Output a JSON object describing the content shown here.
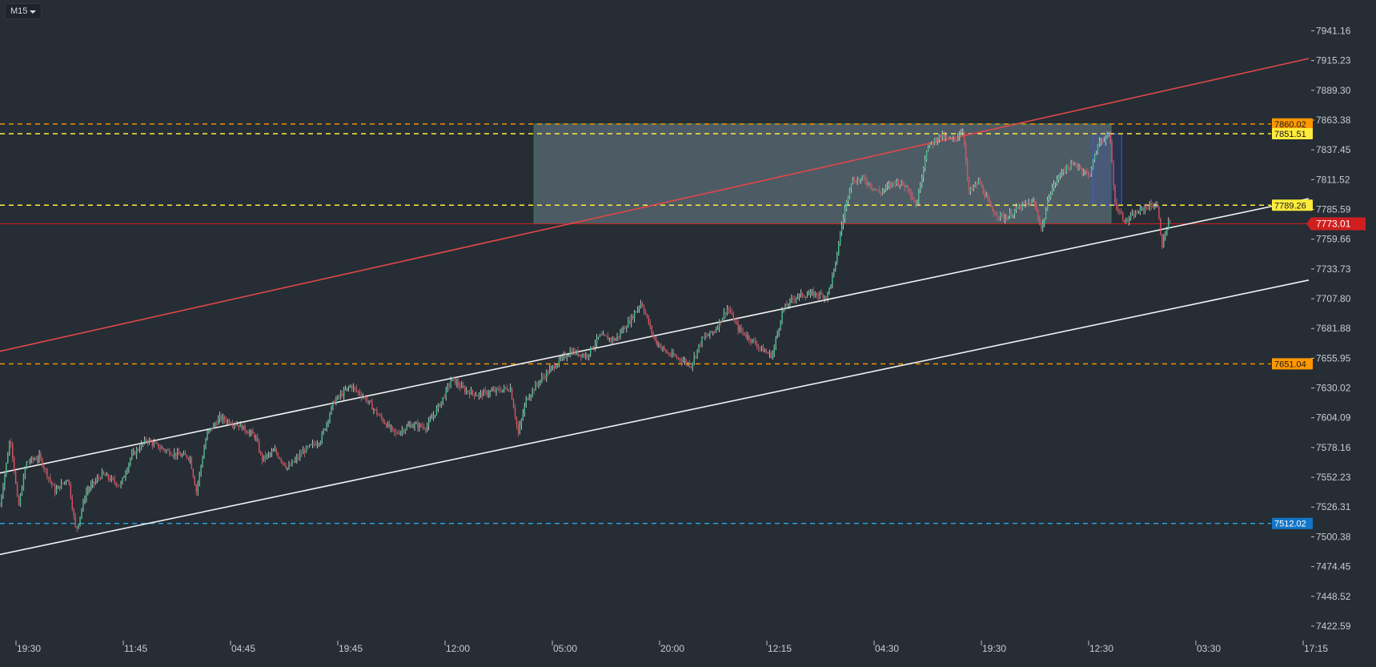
{
  "timeframe": {
    "label": "M15"
  },
  "chart_data": {
    "type": "candlestick",
    "ylim": [
      7410,
      7968
    ],
    "y_ticks": [
      "7941.16",
      "7915.23",
      "7889.30",
      "7863.38",
      "7837.45",
      "7811.52",
      "7785.59",
      "7759.66",
      "7733.73",
      "7707.80",
      "7681.88",
      "7655.95",
      "7630.02",
      "7604.09",
      "7578.16",
      "7552.23",
      "7526.31",
      "7500.38",
      "7474.45",
      "7448.52",
      "7422.59"
    ],
    "x_ticks": [
      "19:30",
      "11:45",
      "04:45",
      "19:45",
      "12:00",
      "05:00",
      "20:00",
      "12:15",
      "04:30",
      "19:30",
      "12:30",
      "03:30",
      "17:15"
    ],
    "current_price": {
      "value": 7773.01,
      "label": "7773.01",
      "color": "#d01f1f"
    },
    "horizontal_levels": [
      {
        "value": 7860.02,
        "label": "7860.02",
        "color": "#ff9800",
        "label_bg": "#ff9800",
        "label_fg": "#1a1a1a"
      },
      {
        "value": 7851.51,
        "label": "7851.51",
        "color": "#ffeb3b",
        "label_bg": "#ffeb3b",
        "label_fg": "#1a1a1a"
      },
      {
        "value": 7789.26,
        "label": "7789.26",
        "color": "#ffeb3b",
        "label_bg": "#ffeb3b",
        "label_fg": "#1a1a1a"
      },
      {
        "value": 7651.04,
        "label": "7651.04",
        "color": "#ff9800",
        "label_bg": "#ff9800",
        "label_fg": "#1a1a1a"
      },
      {
        "value": 7512.02,
        "label": "7512.02",
        "color": "#29a8e6",
        "label_bg": "#1476c8",
        "label_fg": "#ffffff"
      }
    ],
    "trendlines": [
      {
        "color": "#e04848",
        "start": [
          0,
          7662
        ],
        "end": [
          1.0,
          7917
        ]
      },
      {
        "color": "#f2f2f2",
        "start": [
          0,
          7556
        ],
        "end": [
          1.0,
          7795
        ]
      },
      {
        "color": "#f2f2f2",
        "start": [
          0,
          7485
        ],
        "end": [
          1.0,
          7724
        ]
      }
    ],
    "rectangles": [
      {
        "color": "#5b6b75",
        "border": "#2e7d4f",
        "x0": 0.408,
        "x1": 0.849,
        "y0": 7773.01,
        "y1": 7860.02
      },
      {
        "color": "#3a5ad8",
        "border": "#3a5ad8",
        "x0": 0.835,
        "x1": 0.857,
        "y0": 7789.26,
        "y1": 7851.51
      }
    ],
    "price_path": [
      [
        0.0,
        7528
      ],
      [
        0.008,
        7588
      ],
      [
        0.014,
        7525
      ],
      [
        0.02,
        7565
      ],
      [
        0.03,
        7570
      ],
      [
        0.042,
        7540
      ],
      [
        0.052,
        7552
      ],
      [
        0.058,
        7505
      ],
      [
        0.066,
        7540
      ],
      [
        0.078,
        7555
      ],
      [
        0.092,
        7545
      ],
      [
        0.1,
        7570
      ],
      [
        0.112,
        7585
      ],
      [
        0.122,
        7578
      ],
      [
        0.135,
        7572
      ],
      [
        0.145,
        7570
      ],
      [
        0.15,
        7540
      ],
      [
        0.158,
        7590
      ],
      [
        0.168,
        7604
      ],
      [
        0.182,
        7598
      ],
      [
        0.195,
        7588
      ],
      [
        0.2,
        7568
      ],
      [
        0.21,
        7575
      ],
      [
        0.22,
        7560
      ],
      [
        0.232,
        7575
      ],
      [
        0.245,
        7585
      ],
      [
        0.255,
        7618
      ],
      [
        0.268,
        7632
      ],
      [
        0.28,
        7620
      ],
      [
        0.29,
        7605
      ],
      [
        0.302,
        7590
      ],
      [
        0.314,
        7598
      ],
      [
        0.326,
        7596
      ],
      [
        0.338,
        7620
      ],
      [
        0.345,
        7638
      ],
      [
        0.355,
        7628
      ],
      [
        0.365,
        7624
      ],
      [
        0.38,
        7628
      ],
      [
        0.39,
        7630
      ],
      [
        0.396,
        7590
      ],
      [
        0.402,
        7620
      ],
      [
        0.412,
        7636
      ],
      [
        0.424,
        7650
      ],
      [
        0.436,
        7662
      ],
      [
        0.448,
        7658
      ],
      [
        0.458,
        7675
      ],
      [
        0.47,
        7672
      ],
      [
        0.482,
        7690
      ],
      [
        0.49,
        7705
      ],
      [
        0.5,
        7672
      ],
      [
        0.51,
        7660
      ],
      [
        0.52,
        7655
      ],
      [
        0.528,
        7650
      ],
      [
        0.536,
        7672
      ],
      [
        0.546,
        7680
      ],
      [
        0.556,
        7700
      ],
      [
        0.564,
        7682
      ],
      [
        0.574,
        7672
      ],
      [
        0.584,
        7662
      ],
      [
        0.59,
        7658
      ],
      [
        0.598,
        7698
      ],
      [
        0.608,
        7710
      ],
      [
        0.622,
        7712
      ],
      [
        0.632,
        7710
      ],
      [
        0.638,
        7735
      ],
      [
        0.642,
        7765
      ],
      [
        0.65,
        7810
      ],
      [
        0.66,
        7812
      ],
      [
        0.672,
        7800
      ],
      [
        0.684,
        7810
      ],
      [
        0.694,
        7805
      ],
      [
        0.7,
        7788
      ],
      [
        0.708,
        7838
      ],
      [
        0.718,
        7850
      ],
      [
        0.728,
        7845
      ],
      [
        0.736,
        7855
      ],
      [
        0.74,
        7800
      ],
      [
        0.748,
        7810
      ],
      [
        0.758,
        7784
      ],
      [
        0.768,
        7778
      ],
      [
        0.78,
        7788
      ],
      [
        0.79,
        7792
      ],
      [
        0.796,
        7768
      ],
      [
        0.802,
        7800
      ],
      [
        0.812,
        7820
      ],
      [
        0.822,
        7825
      ],
      [
        0.832,
        7815
      ],
      [
        0.84,
        7845
      ],
      [
        0.848,
        7850
      ],
      [
        0.852,
        7790
      ],
      [
        0.86,
        7775
      ],
      [
        0.868,
        7782
      ],
      [
        0.876,
        7788
      ],
      [
        0.884,
        7790
      ],
      [
        0.888,
        7755
      ],
      [
        0.893,
        7775
      ],
      [
        0.895,
        7773
      ]
    ]
  }
}
